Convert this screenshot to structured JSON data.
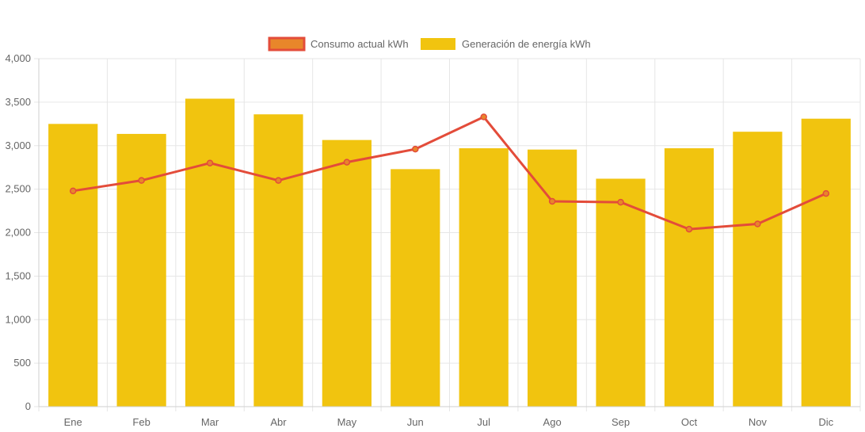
{
  "chart_data": {
    "type": "bar",
    "categories": [
      "Ene",
      "Feb",
      "Mar",
      "Abr",
      "May",
      "Jun",
      "Jul",
      "Ago",
      "Sep",
      "Oct",
      "Nov",
      "Dic"
    ],
    "series": [
      {
        "name": "Consumo actual kWh",
        "type": "line",
        "color": "#e34c3a",
        "fill": "#e8862a",
        "values": [
          2480,
          2600,
          2800,
          2600,
          2810,
          2960,
          3330,
          2360,
          2350,
          2040,
          2100,
          2450
        ]
      },
      {
        "name": "Generación de energía kWh",
        "type": "bar",
        "color": "#f1c40f",
        "values": [
          3250,
          3135,
          3540,
          3360,
          3065,
          2730,
          2970,
          2955,
          2620,
          2970,
          3160,
          3310
        ]
      }
    ],
    "ylim": [
      0,
      4000
    ],
    "yticks": [
      "0",
      "500",
      "1,000",
      "1,500",
      "2,000",
      "2,500",
      "3,000",
      "3,500",
      "4,000"
    ],
    "ytick_values": [
      0,
      500,
      1000,
      1500,
      2000,
      2500,
      3000,
      3500,
      4000
    ],
    "grid": true,
    "legend": "top-center"
  }
}
